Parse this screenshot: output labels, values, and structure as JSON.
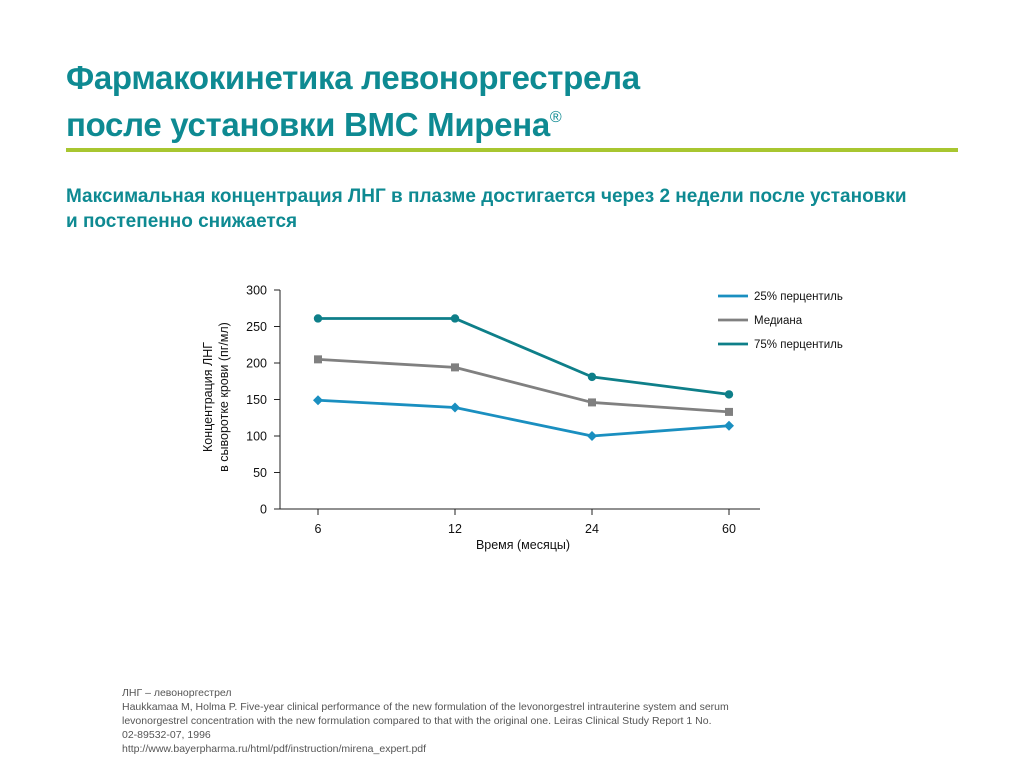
{
  "header": {
    "title_line1": "Фармакокинетика левоноргестрела",
    "title_line2": "после установки ВМС Мирена",
    "title_mark": "®",
    "subtitle_line1": "Максимальная концентрация ЛНГ в плазме достигается через 2 недели после установки",
    "subtitle_line2": "и постепенно снижается"
  },
  "colors": {
    "title": "#0e8a92",
    "rule": "#a8c630"
  },
  "chart_data": {
    "type": "line",
    "categories": [
      "6",
      "12",
      "24",
      "60"
    ],
    "xlabel": "Время (месяцы)",
    "ylabel_line1": "Концентрация ЛНГ",
    "ylabel_line2": "в сыворотке крови (пг/мл)",
    "ylim": [
      0,
      300
    ],
    "yticks": [
      0,
      50,
      100,
      150,
      200,
      250,
      300
    ],
    "grid": false,
    "legend_position": "top-right",
    "series": [
      {
        "name": "25% перцентиль",
        "values": [
          149,
          139,
          100,
          114
        ],
        "color": "#1a8fc0",
        "marker": "diamond"
      },
      {
        "name": "Медиана",
        "values": [
          205,
          194,
          146,
          133
        ],
        "color": "#808080",
        "marker": "square"
      },
      {
        "name": "75% перцентиль",
        "values": [
          261,
          261,
          181,
          157
        ],
        "color": "#0e7f89",
        "marker": "circle"
      }
    ]
  },
  "footnotes": [
    "ЛНГ – левоноргестрел",
    "Haukkamaa M, Holma P. Five-year clinical performance of the new formulation of the levonorgestrel intrauterine system and serum",
    "levonorgestrel concentration with the new formulation compared to that with the original one. Leiras Clinical Study Report 1 No.",
    "02-89532-07, 1996",
    "http://www.bayerpharma.ru/html/pdf/instruction/mirena_expert.pdf"
  ]
}
